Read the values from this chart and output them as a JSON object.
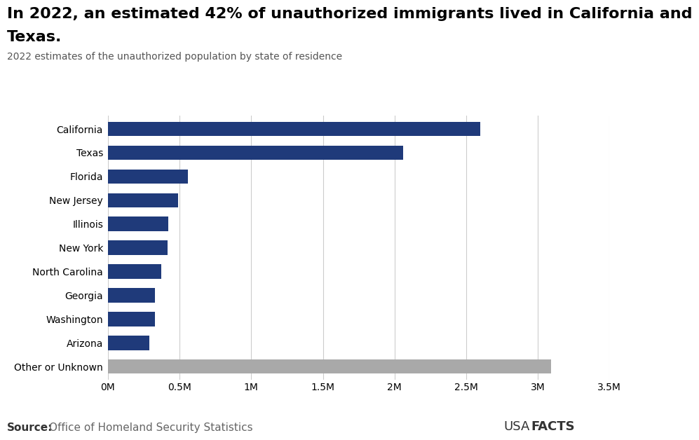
{
  "title_line1": "In 2022, an estimated 42% of unauthorized immigrants lived in California and",
  "title_line2": "Texas.",
  "subtitle": "2022 estimates of the unauthorized population by state of residence",
  "categories": [
    "California",
    "Texas",
    "Florida",
    "New Jersey",
    "Illinois",
    "New York",
    "North Carolina",
    "Georgia",
    "Washington",
    "Arizona",
    "Other or Unknown"
  ],
  "values": [
    2600000,
    2060000,
    560000,
    490000,
    420000,
    415000,
    370000,
    330000,
    330000,
    290000,
    3090000
  ],
  "bar_colors": [
    "#1f3a7a",
    "#1f3a7a",
    "#1f3a7a",
    "#1f3a7a",
    "#1f3a7a",
    "#1f3a7a",
    "#1f3a7a",
    "#1f3a7a",
    "#1f3a7a",
    "#1f3a7a",
    "#a9a9a9"
  ],
  "xlim": [
    0,
    3500000
  ],
  "xtick_values": [
    0,
    500000,
    1000000,
    1500000,
    2000000,
    2500000,
    3000000,
    3500000
  ],
  "xtick_labels": [
    "0M",
    "0.5M",
    "1M",
    "1.5M",
    "2M",
    "2.5M",
    "3M",
    "3.5M"
  ],
  "source_label": "Source:",
  "source_detail": " Office of Homeland Security Statistics",
  "background_color": "#ffffff",
  "bar_height": 0.6,
  "title_fontsize": 16,
  "subtitle_fontsize": 10,
  "tick_fontsize": 10,
  "source_fontsize": 11,
  "title_color": "#000000",
  "subtitle_color": "#555555",
  "source_bold_color": "#333333",
  "source_detail_color": "#666666",
  "usafacts_color": "#333333",
  "grid_color": "#cccccc"
}
